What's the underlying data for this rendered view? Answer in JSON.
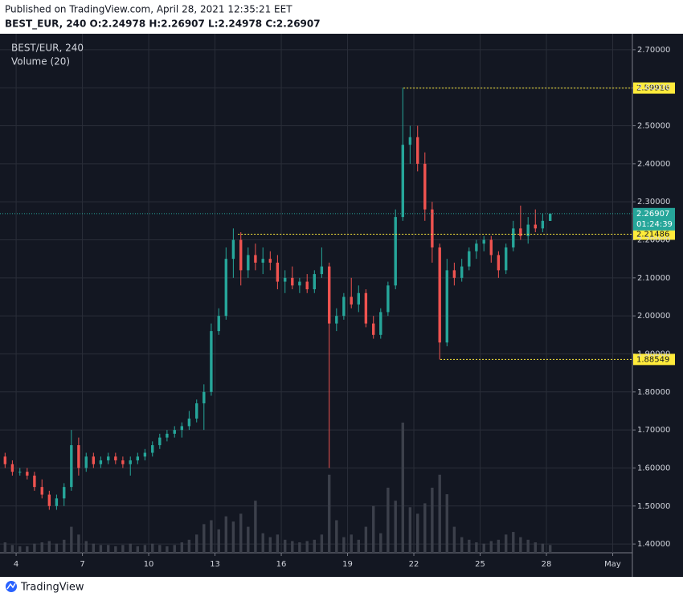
{
  "header": {
    "published": "Published on TradingView.com, April 28, 2021 12:35:21 EET",
    "symbol_line": "BEST_EUR, 240 O:2.24978 H:2.26907 L:2.24978 C:2.26907"
  },
  "chart_data": {
    "type": "candlestick",
    "title": "BEST/EUR, 240",
    "subtitle": "Volume (20)",
    "up_color": "#26a69a",
    "down_color": "#ef5350",
    "volume_color": "#3c404b",
    "grid": true,
    "x": [
      3.5,
      3.83,
      4.17,
      4.5,
      4.83,
      5.17,
      5.5,
      5.83,
      6.17,
      6.5,
      6.83,
      7.17,
      7.5,
      7.83,
      8.17,
      8.5,
      8.83,
      9.17,
      9.5,
      9.83,
      10.17,
      10.5,
      10.83,
      11.17,
      11.5,
      11.83,
      12.17,
      12.5,
      12.83,
      13.17,
      13.5,
      13.83,
      14.17,
      14.5,
      14.83,
      15.17,
      15.5,
      15.83,
      16.17,
      16.5,
      16.83,
      17.17,
      17.5,
      17.83,
      18.17,
      18.5,
      18.83,
      19.17,
      19.5,
      19.83,
      20.17,
      20.5,
      20.83,
      21.17,
      21.5,
      21.83,
      22.17,
      22.5,
      22.83,
      23.17,
      23.5,
      23.83,
      24.17,
      24.5,
      24.83,
      25.17,
      25.5,
      25.83,
      26.17,
      26.5,
      26.83,
      27.17,
      27.5,
      27.83,
      28.17
    ],
    "open": [
      1.63,
      1.61,
      1.59,
      1.59,
      1.58,
      1.55,
      1.53,
      1.5,
      1.52,
      1.55,
      1.66,
      1.6,
      1.63,
      1.61,
      1.62,
      1.63,
      1.62,
      1.61,
      1.62,
      1.63,
      1.64,
      1.66,
      1.68,
      1.69,
      1.7,
      1.71,
      1.73,
      1.77,
      1.8,
      1.96,
      2.0,
      2.15,
      2.2,
      2.12,
      2.16,
      2.14,
      2.15,
      2.14,
      2.09,
      2.1,
      2.08,
      2.09,
      2.07,
      2.11,
      2.13,
      1.98,
      2.0,
      2.05,
      2.03,
      2.06,
      1.98,
      1.95,
      2.01,
      2.08,
      2.26,
      2.45,
      2.47,
      2.4,
      2.28,
      2.18,
      1.93,
      2.12,
      2.1,
      2.13,
      2.17,
      2.19,
      2.2,
      2.16,
      2.12,
      2.18,
      2.23,
      2.21,
      2.24,
      2.23,
      2.24978
    ],
    "high": [
      1.64,
      1.62,
      1.6,
      1.6,
      1.59,
      1.57,
      1.54,
      1.53,
      1.56,
      1.7,
      1.68,
      1.64,
      1.64,
      1.63,
      1.64,
      1.64,
      1.63,
      1.63,
      1.64,
      1.65,
      1.67,
      1.69,
      1.7,
      1.71,
      1.72,
      1.75,
      1.78,
      1.82,
      1.98,
      2.02,
      2.18,
      2.23,
      2.22,
      2.18,
      2.19,
      2.18,
      2.17,
      2.16,
      2.12,
      2.13,
      2.1,
      2.11,
      2.12,
      2.18,
      2.14,
      2.02,
      2.06,
      2.1,
      2.08,
      2.07,
      2.0,
      2.02,
      2.09,
      2.28,
      2.6,
      2.5,
      2.5,
      2.43,
      2.3,
      2.19,
      2.15,
      2.14,
      2.15,
      2.18,
      2.2,
      2.21,
      2.21,
      2.17,
      2.19,
      2.25,
      2.29,
      2.26,
      2.28,
      2.27,
      2.26907
    ],
    "low": [
      1.6,
      1.58,
      1.58,
      1.57,
      1.54,
      1.52,
      1.49,
      1.49,
      1.5,
      1.54,
      1.58,
      1.59,
      1.6,
      1.6,
      1.61,
      1.61,
      1.6,
      1.58,
      1.61,
      1.62,
      1.63,
      1.65,
      1.67,
      1.68,
      1.68,
      1.7,
      1.72,
      1.7,
      1.79,
      1.95,
      1.99,
      2.1,
      2.08,
      2.1,
      2.12,
      2.11,
      2.12,
      2.07,
      2.06,
      2.07,
      2.06,
      2.06,
      2.06,
      2.1,
      1.6,
      1.96,
      1.99,
      2.02,
      2.01,
      1.97,
      1.94,
      1.94,
      2.0,
      2.07,
      2.25,
      2.4,
      2.38,
      2.25,
      2.14,
      1.885,
      1.92,
      2.08,
      2.09,
      2.12,
      2.15,
      2.17,
      2.14,
      2.1,
      2.11,
      2.17,
      2.2,
      2.19,
      2.22,
      2.22,
      2.24978
    ],
    "close": [
      1.61,
      1.59,
      1.59,
      1.58,
      1.55,
      1.53,
      1.5,
      1.52,
      1.55,
      1.66,
      1.6,
      1.63,
      1.61,
      1.62,
      1.63,
      1.62,
      1.61,
      1.62,
      1.63,
      1.64,
      1.66,
      1.68,
      1.69,
      1.7,
      1.71,
      1.73,
      1.77,
      1.8,
      1.96,
      2.0,
      2.15,
      2.2,
      2.12,
      2.16,
      2.14,
      2.15,
      2.14,
      2.09,
      2.1,
      2.08,
      2.09,
      2.07,
      2.11,
      2.13,
      1.98,
      2.0,
      2.05,
      2.03,
      2.06,
      1.98,
      1.95,
      2.01,
      2.08,
      2.26,
      2.45,
      2.47,
      2.4,
      2.28,
      2.18,
      1.93,
      2.12,
      2.1,
      2.13,
      2.17,
      2.19,
      2.2,
      2.16,
      2.12,
      2.18,
      2.23,
      2.21,
      2.24,
      2.23,
      2.25,
      2.26907
    ],
    "volume": [
      8,
      6,
      5,
      5,
      7,
      8,
      9,
      7,
      10,
      20,
      14,
      9,
      7,
      6,
      6,
      5,
      6,
      7,
      5,
      6,
      7,
      6,
      5,
      6,
      8,
      10,
      14,
      22,
      25,
      18,
      28,
      24,
      30,
      20,
      40,
      15,
      12,
      14,
      10,
      9,
      8,
      9,
      10,
      14,
      60,
      25,
      12,
      14,
      10,
      20,
      36,
      15,
      50,
      40,
      100,
      35,
      30,
      38,
      50,
      60,
      45,
      20,
      12,
      10,
      8,
      7,
      9,
      10,
      14,
      16,
      12,
      10,
      8,
      7,
      6
    ],
    "volume_lim": [
      0,
      100
    ],
    "xlim": [
      3.27,
      31.89
    ],
    "xticks": [
      4,
      7,
      10,
      13,
      16,
      19,
      22,
      25,
      28,
      {
        "value": 31,
        "label": "May"
      }
    ],
    "ylim": [
      1.377,
      2.742
    ],
    "yticks": [
      {
        "value": 2.7,
        "label": "2.70000"
      },
      {
        "value": 2.6,
        "label": "2.60000"
      },
      {
        "value": 2.5,
        "label": "2.50000"
      },
      {
        "value": 2.4,
        "label": "2.40000"
      },
      {
        "value": 2.3,
        "label": "2.30000"
      },
      {
        "value": 2.2,
        "label": "2.20000"
      },
      {
        "value": 2.1,
        "label": "2.10000"
      },
      {
        "value": 2.0,
        "label": "2.00000"
      },
      {
        "value": 1.9,
        "label": "1.90000"
      },
      {
        "value": 1.8,
        "label": "1.80000"
      },
      {
        "value": 1.7,
        "label": "1.70000"
      },
      {
        "value": 1.6,
        "label": "1.60000"
      },
      {
        "value": 1.5,
        "label": "1.50000"
      },
      {
        "value": 1.4,
        "label": "1.40000"
      }
    ],
    "levels": [
      {
        "value": 2.59916,
        "from": 21.53,
        "color": "#ffeb3b"
      },
      {
        "value": 2.21486,
        "from": 14.04,
        "color": "#ffeb3b"
      },
      {
        "value": 1.88549,
        "from": 23.2,
        "color": "#ffeb3b"
      }
    ],
    "last_price": 2.26907,
    "countdown": "01:24:39"
  },
  "footer": {
    "brand": "TradingView"
  }
}
